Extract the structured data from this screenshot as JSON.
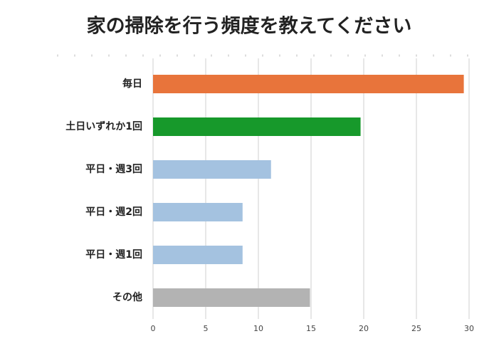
{
  "chart_data": {
    "type": "hbar",
    "title": "家の掃除を行う頻度を教えてください",
    "categories": [
      "毎日",
      "土日いずれか1回",
      "平日・週3回",
      "平日・週2回",
      "平日・週1回",
      "その他"
    ],
    "values": [
      29.5,
      19.7,
      11.2,
      8.5,
      8.5,
      14.9
    ],
    "colors": [
      "#e8743b",
      "#17992b",
      "#a4c2e0",
      "#a4c2e0",
      "#a4c2e0",
      "#b3b3b3"
    ],
    "xlim": [
      0,
      30
    ],
    "xticks": [
      0,
      5,
      10,
      15,
      20,
      25,
      30
    ],
    "grid": true
  }
}
